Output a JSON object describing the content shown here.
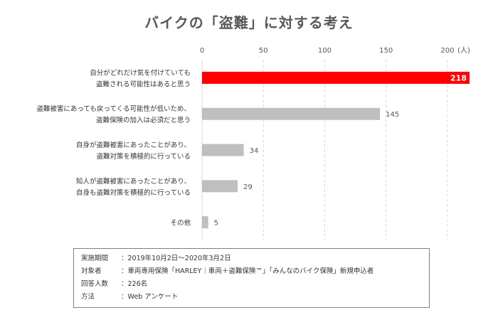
{
  "chart_data": {
    "type": "bar",
    "orientation": "horizontal",
    "title": "バイクの「盗難」に対する考え",
    "unit": "(人)",
    "xlim": [
      0,
      218
    ],
    "ticks": [
      0,
      50,
      100,
      150,
      200
    ],
    "grid": true,
    "categories": [
      [
        "自分がどれだけ気を付けていても",
        "盗難される可能性はあると思う"
      ],
      [
        "盗難被害にあっても戻ってくる可能性が低いため、",
        "盗難保険の加入は必須だと思う"
      ],
      [
        "自身が盗難被害にあったことがあり、",
        "盗難対策を積極的に行っている"
      ],
      [
        "知人が盗難被害にあったことがあり、",
        "自身も盗難対策を積極的に行っている"
      ],
      [
        "その他"
      ]
    ],
    "values": [
      218,
      145,
      34,
      29,
      5
    ],
    "colors": [
      "#ff0000",
      "#bfbfbf",
      "#bfbfbf",
      "#bfbfbf",
      "#bfbfbf"
    ]
  },
  "notes": [
    {
      "key": "実施期間",
      "value": "：2019年10月2日～2020年3月2日"
    },
    {
      "key": "対象者",
      "value": "：車両専用保険「HARLEY｜車両＋盗難保険™」「みんなのバイク保険」新規申込者"
    },
    {
      "key": "回答人数",
      "value": "：226名"
    },
    {
      "key": "方法",
      "value": "：Web アンケート"
    }
  ]
}
